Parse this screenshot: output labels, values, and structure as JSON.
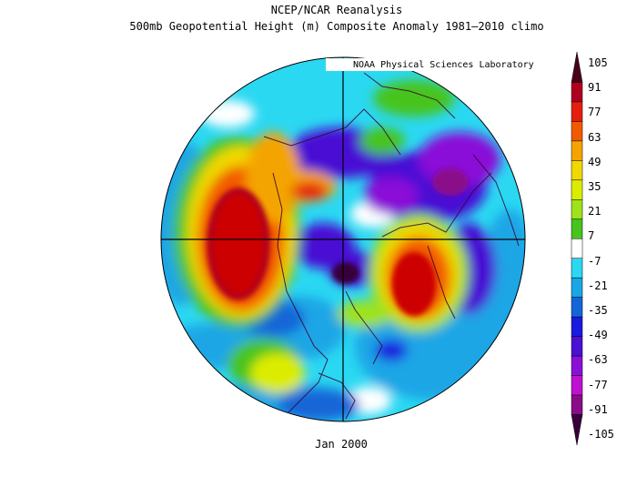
{
  "figure": {
    "title_line1": "NCEP/NCAR Reanalysis",
    "title_line2": "500mb Geopotential Height (m) Composite Anomaly 1981–2010 climo",
    "credit": "NOAA Physical Sciences Laboratory",
    "date_label": "Jan 2000"
  },
  "colorbar": {
    "labels": [
      "105",
      "91",
      "77",
      "63",
      "49",
      "35",
      "21",
      "7",
      "-7",
      "-21",
      "-35",
      "-49",
      "-63",
      "-77",
      "-91",
      "-105"
    ],
    "colors": [
      "#4a0018",
      "#b0001f",
      "#e51e10",
      "#f25a00",
      "#f4a400",
      "#f0d800",
      "#dcec00",
      "#9ee21a",
      "#46c41c",
      "#ffffff",
      "#2ad8f2",
      "#1aa6e6",
      "#1366d8",
      "#1a1ae0",
      "#4a10d4",
      "#8a10d8",
      "#c010d0",
      "#8a0a8a",
      "#38003a"
    ]
  }
}
